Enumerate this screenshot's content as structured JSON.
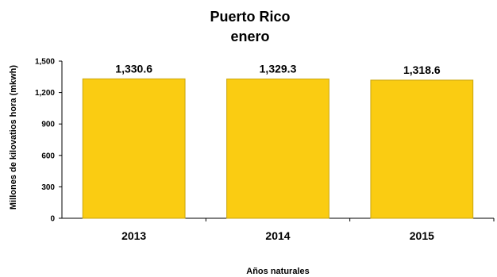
{
  "chart_data": {
    "type": "bar",
    "title_lines": [
      "Puerto Rico",
      "enero"
    ],
    "ylabel": "Millones de kilovatios hora (mkwh)",
    "xlabel": "Años naturales",
    "categories": [
      "2013",
      "2014",
      "2015"
    ],
    "values": [
      1330.6,
      1329.3,
      1318.6
    ],
    "value_labels": [
      "1,330.6",
      "1,329.3",
      "1,318.6"
    ],
    "ylim": [
      0,
      1500
    ],
    "yticks": [
      0,
      300,
      600,
      900,
      1200,
      1500
    ],
    "ytick_labels": [
      "0",
      "300",
      "600",
      "900",
      "1,200",
      "1,500"
    ],
    "grid": false,
    "bar_color": "#FACC12",
    "bar_edge_color": "#C9A50C"
  }
}
